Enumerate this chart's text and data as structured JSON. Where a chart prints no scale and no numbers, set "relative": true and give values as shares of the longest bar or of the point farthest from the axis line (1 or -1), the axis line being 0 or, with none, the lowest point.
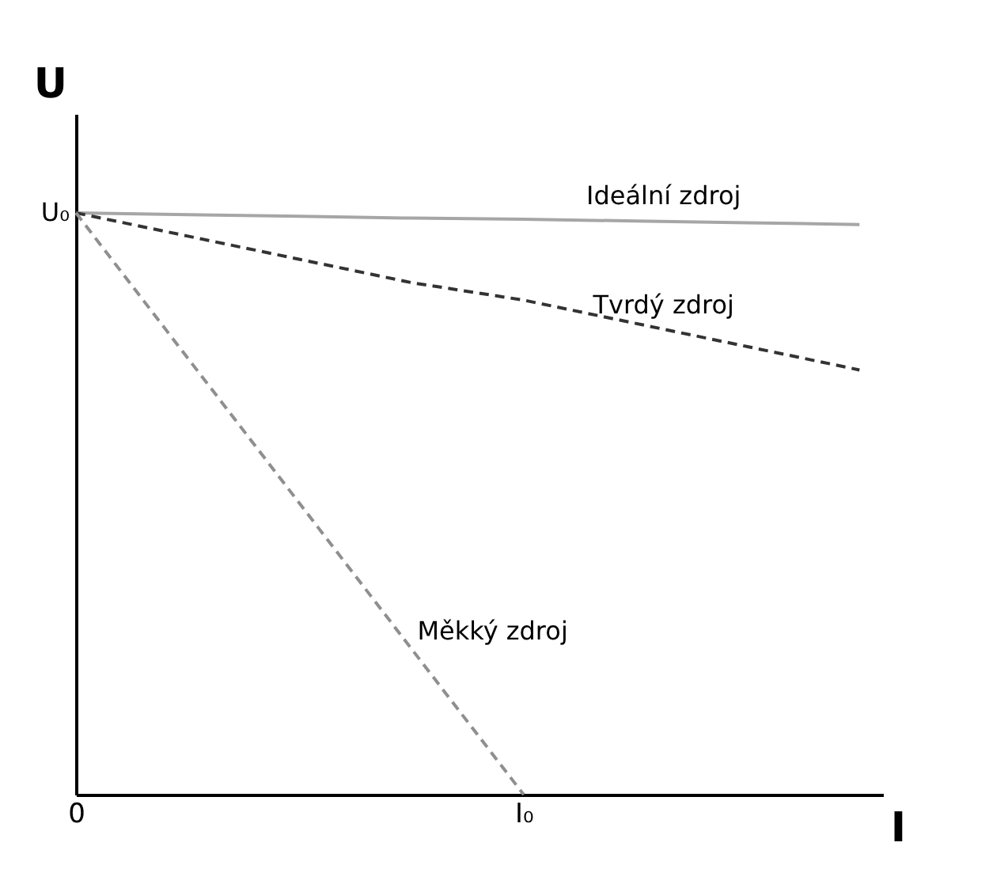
{
  "chart_data": {
    "type": "line",
    "xlabel": "I",
    "ylabel": "U",
    "relative": true,
    "categories": [
      "0",
      null,
      null,
      null,
      "I₀",
      null,
      null,
      null
    ],
    "annotations": [
      "U₀"
    ],
    "grid": false,
    "marker": "none",
    "series": [
      {
        "name": "Ideální zdroj",
        "color": "#a6a6a6",
        "line_style": "solid",
        "values": [
          1,
          0.997,
          0.994,
          0.991,
          0.989,
          0.986,
          0.983,
          0.98
        ]
      },
      {
        "name": "Tvrdý zdroj",
        "color": "#333333",
        "line_style": "dashed",
        "values": [
          1,
          0.96,
          0.92,
          0.88,
          0.85,
          0.81,
          0.77,
          0.73
        ]
      },
      {
        "name": "Měkký zdroj",
        "color": "#8f8f8f",
        "line_style": "dashed",
        "values": [
          1,
          0.75,
          0.5,
          0.25,
          0,
          null,
          null,
          null
        ]
      }
    ]
  }
}
